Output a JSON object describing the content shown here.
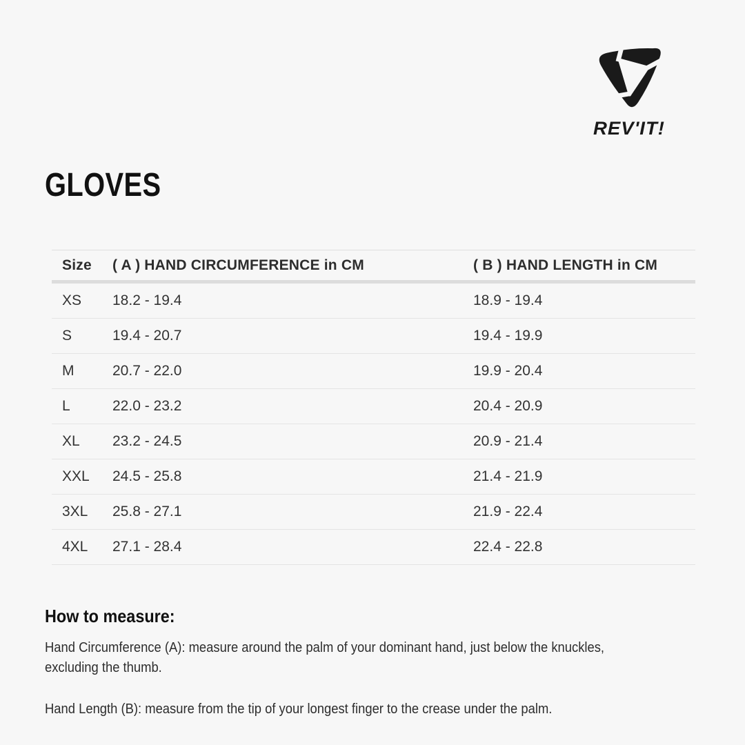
{
  "logo": {
    "brand": "REV'IT!"
  },
  "title": "GLOVES",
  "table": {
    "headers": {
      "size": "Size",
      "circumference": "( A ) HAND CIRCUMFERENCE in CM",
      "length": "( B ) HAND LENGTH in CM"
    },
    "rows": [
      {
        "size": "XS",
        "circumference": "18.2 - 19.4",
        "length": "18.9 - 19.4"
      },
      {
        "size": "S",
        "circumference": "19.4 - 20.7",
        "length": "19.4 - 19.9"
      },
      {
        "size": "M",
        "circumference": "20.7 - 22.0",
        "length": "19.9 - 20.4"
      },
      {
        "size": "L",
        "circumference": "22.0 - 23.2",
        "length": "20.4 - 20.9"
      },
      {
        "size": "XL",
        "circumference": "23.2 - 24.5",
        "length": "20.9 - 21.4"
      },
      {
        "size": "XXL",
        "circumference": "24.5 - 25.8",
        "length": "21.4 - 21.9"
      },
      {
        "size": "3XL",
        "circumference": "25.8 - 27.1",
        "length": "21.9 - 22.4"
      },
      {
        "size": "4XL",
        "circumference": "27.1 - 28.4",
        "length": "22.4 - 22.8"
      }
    ]
  },
  "how_to_measure": {
    "heading": "How to measure:",
    "paragraphs": [
      "Hand Circumference (A): measure around the palm of your dominant hand, just below the knuckles, excluding the thumb.",
      "Hand Length (B): measure from the tip of your longest finger to the crease under the palm."
    ]
  },
  "colors": {
    "background": "#f7f7f7",
    "ink": "#111111",
    "table_text": "#333333",
    "divider_thin": "#e4e4e4",
    "divider_thick": "#dcdcdc"
  }
}
